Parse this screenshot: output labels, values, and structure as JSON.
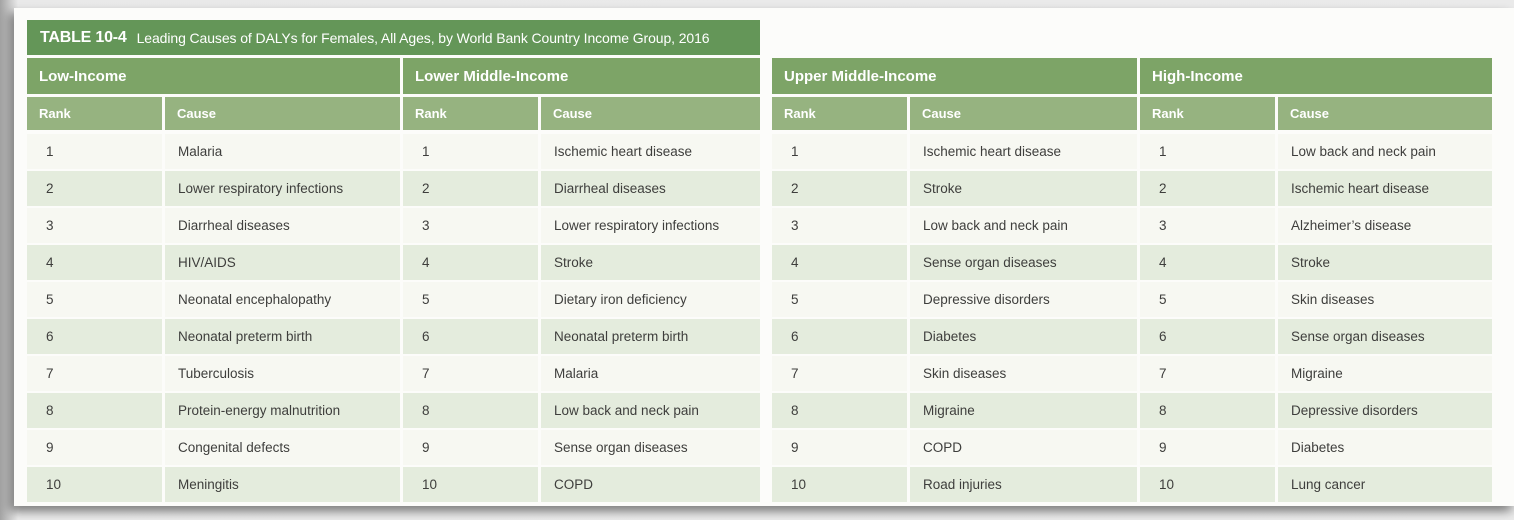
{
  "title": {
    "label": "TABLE 10-4",
    "caption": "Leading Causes of DALYs for Females, All Ages, by World Bank Country Income Group, 2016"
  },
  "columns": {
    "rank": "Rank",
    "cause": "Cause"
  },
  "colors": {
    "title_bar_green": "#649658",
    "group_header_green": "#7da467",
    "column_header_green": "#96b380",
    "row_alternate_green": "#e4ecdd",
    "row_base": "#f7f8f2",
    "header_text": "#ffffff",
    "body_text": "#3e3e3c"
  },
  "groups": [
    {
      "name": "Low-Income",
      "rows": [
        {
          "rank": "1",
          "cause": "Malaria"
        },
        {
          "rank": "2",
          "cause": "Lower respiratory infections"
        },
        {
          "rank": "3",
          "cause": "Diarrheal diseases"
        },
        {
          "rank": "4",
          "cause": "HIV/AIDS"
        },
        {
          "rank": "5",
          "cause": "Neonatal encephalopathy"
        },
        {
          "rank": "6",
          "cause": "Neonatal preterm birth"
        },
        {
          "rank": "7",
          "cause": "Tuberculosis"
        },
        {
          "rank": "8",
          "cause": "Protein-energy malnutrition"
        },
        {
          "rank": "9",
          "cause": "Congenital defects"
        },
        {
          "rank": "10",
          "cause": "Meningitis"
        }
      ]
    },
    {
      "name": "Lower Middle-Income",
      "rows": [
        {
          "rank": "1",
          "cause": "Ischemic heart disease"
        },
        {
          "rank": "2",
          "cause": "Diarrheal diseases"
        },
        {
          "rank": "3",
          "cause": "Lower respiratory infections"
        },
        {
          "rank": "4",
          "cause": "Stroke"
        },
        {
          "rank": "5",
          "cause": "Dietary iron deficiency"
        },
        {
          "rank": "6",
          "cause": "Neonatal preterm birth"
        },
        {
          "rank": "7",
          "cause": "Malaria"
        },
        {
          "rank": "8",
          "cause": "Low back and neck pain"
        },
        {
          "rank": "9",
          "cause": "Sense organ diseases"
        },
        {
          "rank": "10",
          "cause": "COPD"
        }
      ]
    },
    {
      "name": "Upper Middle-Income",
      "rows": [
        {
          "rank": "1",
          "cause": "Ischemic heart disease"
        },
        {
          "rank": "2",
          "cause": "Stroke"
        },
        {
          "rank": "3",
          "cause": "Low back and neck pain"
        },
        {
          "rank": "4",
          "cause": "Sense organ diseases"
        },
        {
          "rank": "5",
          "cause": "Depressive disorders"
        },
        {
          "rank": "6",
          "cause": "Diabetes"
        },
        {
          "rank": "7",
          "cause": "Skin diseases"
        },
        {
          "rank": "8",
          "cause": "Migraine"
        },
        {
          "rank": "9",
          "cause": "COPD"
        },
        {
          "rank": "10",
          "cause": "Road injuries"
        }
      ]
    },
    {
      "name": "High-Income",
      "rows": [
        {
          "rank": "1",
          "cause": "Low back and neck pain"
        },
        {
          "rank": "2",
          "cause": "Ischemic heart disease"
        },
        {
          "rank": "3",
          "cause": "Alzheimer’s disease"
        },
        {
          "rank": "4",
          "cause": "Stroke"
        },
        {
          "rank": "5",
          "cause": "Skin diseases"
        },
        {
          "rank": "6",
          "cause": "Sense organ diseases"
        },
        {
          "rank": "7",
          "cause": "Migraine"
        },
        {
          "rank": "8",
          "cause": "Depressive disorders"
        },
        {
          "rank": "9",
          "cause": "Diabetes"
        },
        {
          "rank": "10",
          "cause": "Lung cancer"
        }
      ]
    }
  ]
}
